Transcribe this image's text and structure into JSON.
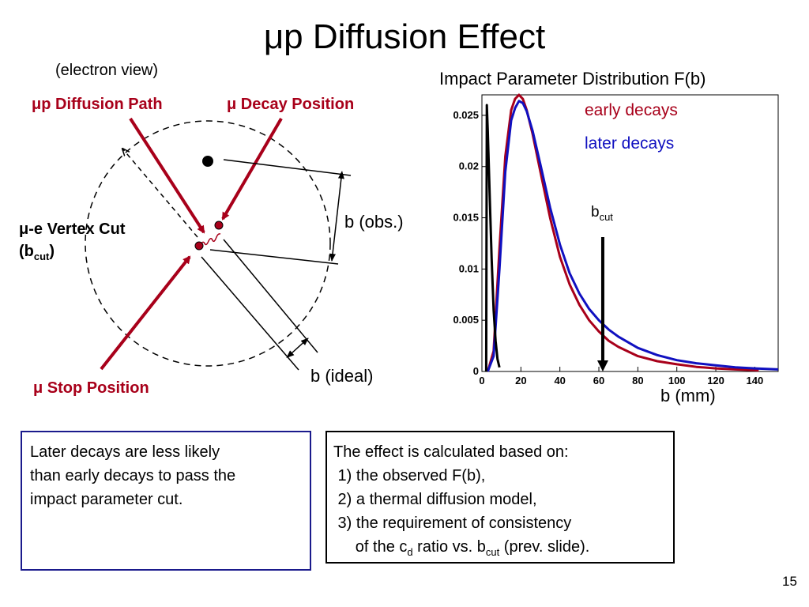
{
  "slide": {
    "title": "μp Diffusion Effect",
    "page_number": "15"
  },
  "diagram": {
    "view_label": "(electron view)",
    "diffusion_path_label": "μp Diffusion Path",
    "decay_position_label": "μ Decay Position",
    "vertex_cut_label_line1": "μ-e Vertex Cut",
    "vertex_cut_label_line2_main": "(b",
    "vertex_cut_label_line2_sub": "cut",
    "vertex_cut_label_line2_end": ")",
    "b_obs_label": "b (obs.)",
    "b_ideal_label": "b (ideal)",
    "stop_position_label": "μ Stop Position",
    "colors": {
      "arrow": "#a8001a",
      "dot": "#a8001a",
      "label_red": "#a8001a"
    }
  },
  "chart": {
    "title": "Impact Parameter Distribution F(b)",
    "legend": [
      {
        "name": "early decays",
        "color": "#a8001a"
      },
      {
        "name": "later decays",
        "color": "#1010c0"
      }
    ],
    "bcut_main": "b",
    "bcut_sub": "cut",
    "xlabel": "b (mm)"
  },
  "chart_data": {
    "type": "line",
    "title": "Impact Parameter Distribution F(b)",
    "xlabel": "b (mm)",
    "ylabel": "",
    "xlim": [
      0,
      152
    ],
    "ylim": [
      0,
      0.027
    ],
    "x_ticks": [
      0,
      20,
      40,
      60,
      80,
      100,
      120,
      140
    ],
    "y_ticks": [
      0,
      0.005,
      0.01,
      0.015,
      0.02,
      0.025
    ],
    "y_tick_labels": [
      "0",
      "0.005",
      "0.01",
      "0.015",
      "0.02",
      "0.025"
    ],
    "bcut_value": 62,
    "series": [
      {
        "name": "early decays",
        "color": "#a8001a",
        "x": [
          3,
          6,
          9,
          12,
          15,
          17,
          19,
          21,
          23,
          26,
          30,
          35,
          40,
          45,
          50,
          55,
          60,
          65,
          70,
          80,
          90,
          100,
          110,
          120,
          130,
          140,
          142
        ],
        "y": [
          0,
          0.002,
          0.012,
          0.021,
          0.0255,
          0.0266,
          0.027,
          0.0266,
          0.0255,
          0.0232,
          0.0195,
          0.015,
          0.0112,
          0.0085,
          0.0065,
          0.005,
          0.0039,
          0.003,
          0.0024,
          0.0015,
          0.001,
          0.0007,
          0.00045,
          0.0003,
          0.0002,
          0.00012,
          0.0001
        ]
      },
      {
        "name": "later decays",
        "color": "#1010c0",
        "x": [
          3,
          6,
          9,
          12,
          15,
          17,
          19,
          21,
          23,
          26,
          30,
          35,
          40,
          45,
          50,
          55,
          60,
          65,
          70,
          80,
          90,
          100,
          110,
          120,
          130,
          140,
          152
        ],
        "y": [
          0,
          0.0015,
          0.01,
          0.0195,
          0.0245,
          0.0257,
          0.0264,
          0.0262,
          0.0254,
          0.0235,
          0.0202,
          0.016,
          0.0124,
          0.0096,
          0.0076,
          0.0061,
          0.005,
          0.0041,
          0.0034,
          0.0023,
          0.0016,
          0.0011,
          0.0008,
          0.0006,
          0.0004,
          0.0003,
          0.0002
        ]
      },
      {
        "name": "",
        "color": "#000000",
        "x": [
          2.2,
          2.5,
          3,
          4,
          5,
          6,
          7,
          8,
          9
        ],
        "y": [
          0,
          0.026,
          0.0235,
          0.017,
          0.011,
          0.006,
          0.003,
          0.0012,
          0.0004
        ]
      }
    ]
  },
  "boxes": {
    "left": {
      "lines": [
        "Later decays are less likely",
        "than early decays to pass the",
        "impact parameter cut."
      ]
    },
    "right": {
      "line1": "The effect is calculated based on:",
      "line2": " 1) the observed F(b),",
      "line3": " 2) a thermal diffusion model,",
      "line4": " 3) the requirement of consistency",
      "line5_a": "     of the c",
      "line5_sub1": "d",
      "line5_b": " ratio vs. b",
      "line5_sub2": "cut",
      "line5_c": " (prev. slide)."
    }
  }
}
